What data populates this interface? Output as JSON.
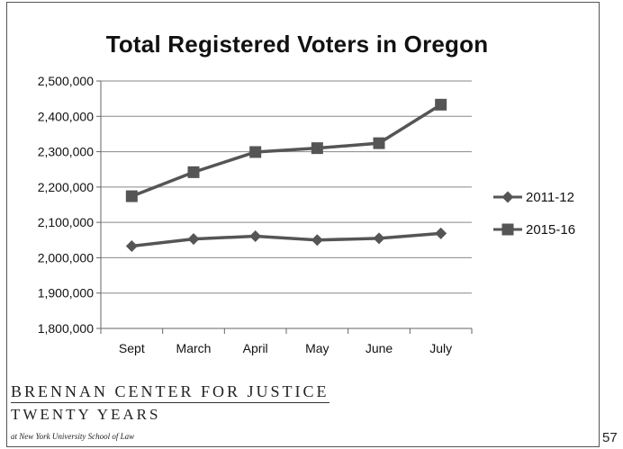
{
  "chart_data": {
    "type": "line",
    "title": "Total Registered Voters in Oregon",
    "categories": [
      "Sept",
      "March",
      "April",
      "May",
      "June",
      "July"
    ],
    "ylim": [
      1800000,
      2500000
    ],
    "ytick_values": [
      1800000,
      1900000,
      2000000,
      2100000,
      2200000,
      2300000,
      2400000,
      2500000
    ],
    "ytick_labels": [
      "1,800,000",
      "1,900,000",
      "2,000,000",
      "2,100,000",
      "2,200,000",
      "2,300,000",
      "2,400,000",
      "2,500,000"
    ],
    "grid": "horizontal",
    "legend_position": "right",
    "series": [
      {
        "name": "2011-12",
        "marker": "diamond",
        "color": "#555555",
        "values": [
          2033000,
          2053000,
          2061000,
          2050000,
          2055000,
          2069000
        ]
      },
      {
        "name": "2015-16",
        "marker": "square",
        "color": "#555555",
        "values": [
          2174000,
          2242000,
          2299000,
          2310000,
          2324000,
          2433000
        ]
      }
    ]
  },
  "footer": {
    "org_line1": "BRENNAN CENTER FOR JUSTICE",
    "org_line2": "TWENTY YEARS",
    "org_line3": "at New York University School of Law",
    "page_number": "57"
  }
}
